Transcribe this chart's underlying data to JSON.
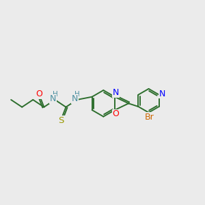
{
  "background_color": "#ebebeb",
  "bond_color": "#2d6e2d",
  "lw": 1.4,
  "figsize": [
    3.0,
    3.0
  ],
  "dpi": 100,
  "xlim": [
    0,
    11
  ],
  "ylim": [
    2.5,
    7.5
  ]
}
